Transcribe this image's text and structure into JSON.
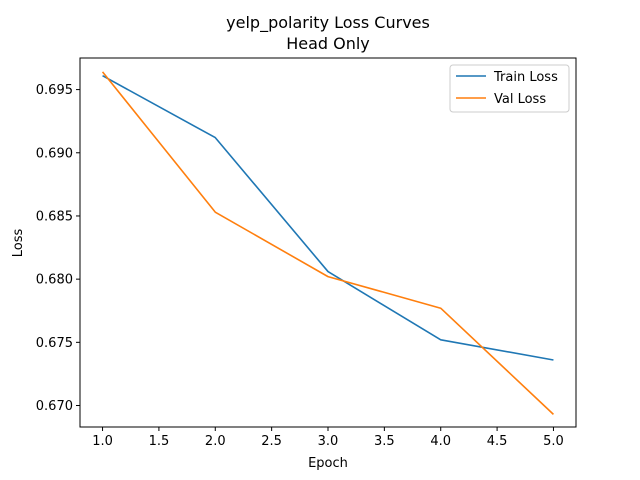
{
  "chart_data": {
    "type": "line",
    "title": "yelp_polarity Loss Curves",
    "subtitle": "Head Only",
    "xlabel": "Epoch",
    "ylabel": "Loss",
    "xlim": [
      0.8,
      5.2
    ],
    "ylim": [
      0.6683,
      0.6975
    ],
    "xticks": [
      1.0,
      1.5,
      2.0,
      2.5,
      3.0,
      3.5,
      4.0,
      4.5,
      5.0
    ],
    "xtick_labels": [
      "1.0",
      "1.5",
      "2.0",
      "2.5",
      "3.0",
      "3.5",
      "4.0",
      "4.5",
      "5.0"
    ],
    "yticks": [
      0.67,
      0.675,
      0.68,
      0.685,
      0.69,
      0.695
    ],
    "ytick_labels": [
      "0.670",
      "0.675",
      "0.680",
      "0.685",
      "0.690",
      "0.695"
    ],
    "grid": false,
    "legend_position": "top-right",
    "x": [
      1,
      2,
      3,
      4,
      5
    ],
    "series": [
      {
        "name": "Train Loss",
        "color": "#1f77b4",
        "values": [
          0.6961,
          0.6912,
          0.6806,
          0.6752,
          0.6736
        ]
      },
      {
        "name": "Val Loss",
        "color": "#ff7f0e",
        "values": [
          0.6964,
          0.6853,
          0.6802,
          0.6777,
          0.6693
        ]
      }
    ]
  }
}
